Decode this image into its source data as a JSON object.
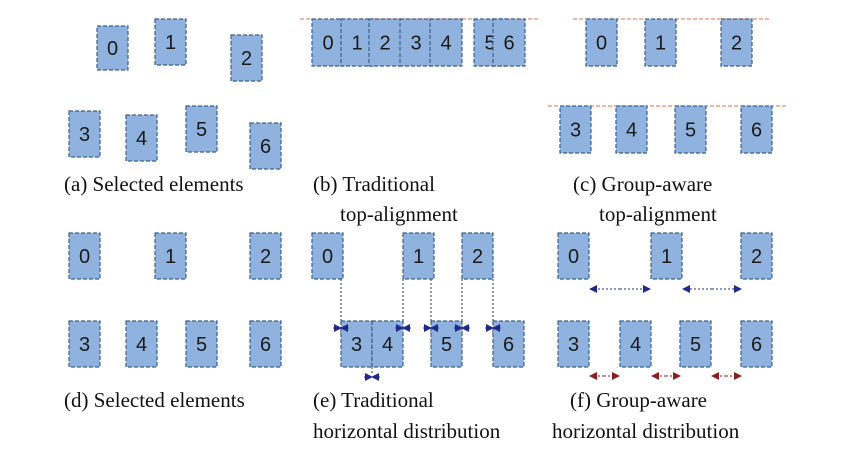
{
  "panels": {
    "a": {
      "caption": [
        "(a) Selected elements"
      ]
    },
    "b": {
      "caption": [
        "(b) Traditional",
        "top-alignment"
      ]
    },
    "c": {
      "caption": [
        "(c) Group-aware",
        "top-alignment"
      ]
    },
    "d": {
      "caption": [
        "(d) Selected elements"
      ]
    },
    "e": {
      "caption": [
        "(e) Traditional",
        "horizontal distribution"
      ]
    },
    "f": {
      "caption": [
        "(f) Group-aware",
        "horizontal distribution"
      ]
    }
  },
  "element_labels": [
    "0",
    "1",
    "2",
    "3",
    "4",
    "5",
    "6"
  ],
  "colors": {
    "box_fill": "#8fb3de",
    "box_stroke": "#3a5f8f",
    "alignment_guide": "#e0704a",
    "spacing_arrow_blue": "#1f2a8a",
    "spacing_arrow_red": "#8a1f1f"
  }
}
